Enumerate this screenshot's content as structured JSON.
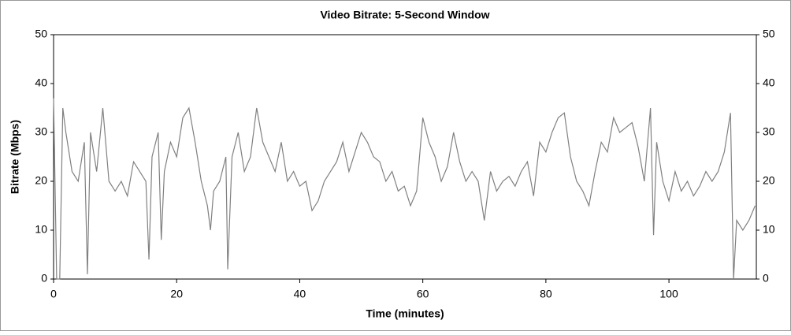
{
  "chart_data": {
    "type": "line",
    "title": "Video Bitrate: 5-Second Window",
    "x_label": "Time (minutes)",
    "y_label": "Bitrate (Mbps)",
    "x": [
      0,
      0.5,
      1,
      1.5,
      2,
      3,
      4,
      5,
      5.5,
      6,
      7,
      8,
      9,
      10,
      11,
      12,
      13,
      14,
      15,
      15.5,
      16,
      17,
      17.5,
      18,
      19,
      20,
      21,
      22,
      23,
      24,
      25,
      25.5,
      26,
      27,
      28,
      28.3,
      29,
      30,
      31,
      32,
      33,
      34,
      35,
      36,
      37,
      38,
      39,
      40,
      41,
      42,
      43,
      44,
      45,
      46,
      47,
      48,
      49,
      50,
      51,
      52,
      53,
      54,
      55,
      56,
      57,
      58,
      59,
      60,
      61,
      62,
      63,
      64,
      65,
      66,
      67,
      68,
      69,
      70,
      71,
      72,
      73,
      74,
      75,
      76,
      77,
      78,
      79,
      80,
      81,
      82,
      83,
      84,
      85,
      86,
      87,
      88,
      89,
      90,
      91,
      92,
      93,
      94,
      95,
      96,
      97,
      97.5,
      98,
      99,
      100,
      101,
      102,
      103,
      104,
      105,
      106,
      107,
      108,
      109,
      110,
      110.5,
      111,
      112,
      113,
      114
    ],
    "series": [
      {
        "name": "Video Bitrate",
        "color": "#808080",
        "values": [
          37,
          0,
          0,
          35,
          30,
          22,
          20,
          28,
          1,
          30,
          22,
          35,
          20,
          18,
          20,
          17,
          24,
          22,
          20,
          4,
          25,
          30,
          8,
          22,
          28,
          25,
          33,
          35,
          28,
          20,
          15,
          10,
          18,
          20,
          25,
          2,
          25,
          30,
          22,
          25,
          35,
          28,
          25,
          22,
          28,
          20,
          22,
          19,
          20,
          14,
          16,
          20,
          22,
          24,
          28,
          22,
          26,
          30,
          28,
          25,
          24,
          20,
          22,
          18,
          19,
          15,
          18,
          33,
          28,
          25,
          20,
          23,
          30,
          24,
          20,
          22,
          20,
          12,
          22,
          18,
          20,
          21,
          19,
          22,
          24,
          17,
          28,
          26,
          30,
          33,
          34,
          25,
          20,
          18,
          15,
          22,
          28,
          26,
          33,
          30,
          31,
          32,
          27,
          20,
          35,
          9,
          28,
          20,
          16,
          22,
          18,
          20,
          17,
          19,
          22,
          20,
          22,
          26,
          34,
          0,
          12,
          10,
          12,
          15
        ]
      }
    ],
    "xlim": [
      0,
      114.2
    ],
    "xticks": [
      0,
      20,
      40,
      60,
      80,
      100
    ],
    "ylim": [
      0,
      50
    ],
    "yticks": [
      0,
      10,
      20,
      30,
      40,
      50
    ]
  }
}
